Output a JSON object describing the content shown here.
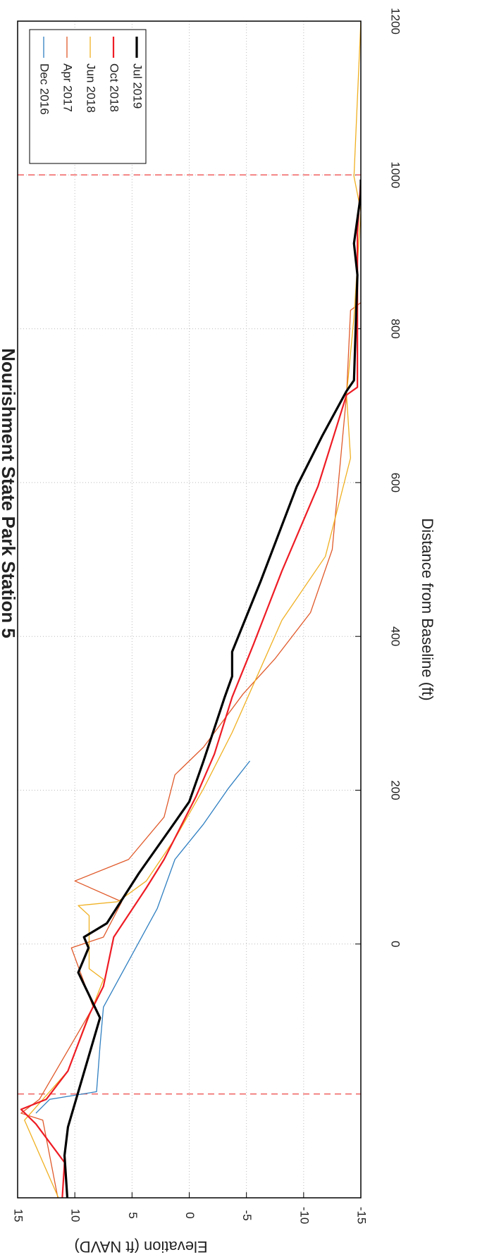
{
  "chart_data": {
    "type": "line",
    "title": "Nourishment State Park Station 5",
    "x_label": "Distance from Baseline (ft)",
    "y_label": "Elevation (ft NAVD)",
    "xlim": [
      -330,
      1200
    ],
    "ylim": [
      -15,
      15
    ],
    "xticks": [
      0,
      200,
      400,
      600,
      800,
      1000,
      1200
    ],
    "yticks": [
      -15,
      -10,
      -5,
      0,
      5,
      10,
      15
    ],
    "grid": true,
    "legend": "upper right",
    "reference_lines": {
      "color": "#f06060",
      "x": [
        -195,
        1000
      ]
    },
    "series": [
      {
        "name": "Dec 2016",
        "color": "#2f7fc1",
        "width": 1.3,
        "x": [
          -220,
          -202,
          -192,
          -133,
          -82,
          46,
          110,
          156,
          202,
          238
        ],
        "values": [
          13.4,
          12.2,
          8.1,
          7.8,
          7.5,
          2.8,
          1.25,
          -1.25,
          -3.4,
          -5.3
        ]
      },
      {
        "name": "Apr 2017",
        "color": "#e05a2b",
        "width": 1.3,
        "x": [
          -348,
          -229,
          -220,
          -202,
          -82,
          -5,
          9,
          55,
          82,
          110,
          165,
          220,
          256,
          325,
          371,
          431,
          513,
          714,
          824,
          834
        ],
        "values": [
          11.25,
          12.8,
          14.7,
          13.1,
          8.4,
          10.3,
          7.5,
          5.9,
          10,
          5.3,
          2.2,
          1.25,
          -1.25,
          -4.7,
          -7.5,
          -10.6,
          -12.5,
          -13.75,
          -14.1,
          -15
        ]
      },
      {
        "name": "Jun 2018",
        "color": "#f0b021",
        "width": 1.3,
        "x": [
          -348,
          -229,
          -165,
          -46,
          -32,
          37,
          50,
          55,
          82,
          137,
          202,
          275,
          421,
          504,
          632,
          714,
          815,
          953,
          998,
          1200
        ],
        "values": [
          10.9,
          14.4,
          10.6,
          7.5,
          8.75,
          8.75,
          9.7,
          6.25,
          3.75,
          1.25,
          -1.25,
          -3.75,
          -8.1,
          -11.9,
          -14.1,
          -13.75,
          -14.4,
          -15,
          -14.4,
          -15
        ]
      },
      {
        "name": "Oct 2018",
        "color": "#ee1c25",
        "width": 2.2,
        "x": [
          -366,
          -284,
          -234,
          -215,
          -202,
          -165,
          -92,
          -55,
          9,
          73,
          110,
          192,
          247,
          321,
          389,
          485,
          595,
          714,
          724,
          925,
          994
        ],
        "values": [
          11.25,
          10.9,
          13.4,
          14.7,
          12.5,
          10.6,
          8.75,
          7.5,
          6.6,
          3.75,
          2.2,
          -0.6,
          -2.2,
          -3.75,
          -5.6,
          -8.1,
          -11.25,
          -13.75,
          -14.7,
          -14.7,
          -15
        ]
      },
      {
        "name": "Jul 2019",
        "color": "#000000",
        "width": 3.2,
        "x": [
          -343,
          -275,
          -238,
          -96,
          -37,
          -5,
          9,
          27,
          92,
          151,
          185,
          238,
          321,
          348,
          380,
          472,
          595,
          660,
          719,
          733,
          870,
          911,
          975,
          994
        ],
        "values": [
          10.6,
          10.9,
          10.6,
          7.8,
          9.7,
          8.8,
          9.2,
          7.2,
          4.4,
          1.6,
          0,
          -1.25,
          -3.1,
          -3.75,
          -3.75,
          -6.25,
          -9.4,
          -11.6,
          -13.75,
          -14.4,
          -14.7,
          -14.4,
          -15,
          -15
        ]
      }
    ]
  }
}
